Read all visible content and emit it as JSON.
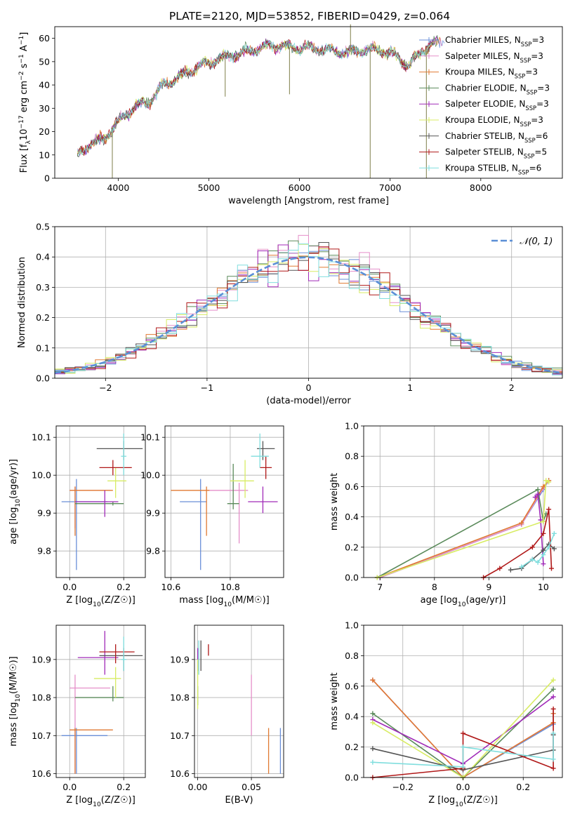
{
  "title": "PLATE=2120, MJD=53852, FIBERID=0429, z=0.064",
  "colors": {
    "chabrier_miles": "#6a8fd8",
    "salpeter_miles": "#e58fc9",
    "kroupa_miles": "#e07a32",
    "chabrier_elodie": "#5a8a5a",
    "salpeter_elodie": "#a02ab8",
    "kroupa_elodie": "#d8ec64",
    "chabrier_stelib": "#555555",
    "salpeter_stelib": "#b01818",
    "kroupa_stelib": "#80dede"
  },
  "chart_data": [
    {
      "id": "spectrum",
      "type": "line",
      "xlabel": "wavelength [Angstrom, rest frame]",
      "ylabel": "Flux [f_λ10^-17 erg cm^-2 s^-1 A^-1]",
      "xlim": [
        3300,
        8900
      ],
      "ylim": [
        0,
        65
      ],
      "xticks": [
        4000,
        5000,
        6000,
        7000,
        8000
      ],
      "yticks": [
        0,
        10,
        20,
        30,
        40,
        50,
        60
      ],
      "legend_position": "right",
      "grid": false,
      "continuum": {
        "x": [
          3550,
          3700,
          3850,
          3950,
          4050,
          4200,
          4350,
          4500,
          4700,
          4900,
          5100,
          5300,
          5500,
          5700,
          5900,
          6100,
          6300,
          6500,
          6700,
          6900,
          7100,
          7200,
          7350,
          7500,
          7600
        ],
        "y": [
          10,
          15,
          17,
          22,
          26,
          31,
          33,
          40,
          44,
          48,
          51,
          53,
          55,
          57,
          56,
          56,
          55,
          54,
          55,
          55,
          52,
          48,
          55,
          58,
          59
        ]
      },
      "features": [
        {
          "x": 3935,
          "y": 0
        },
        {
          "x": 5180,
          "y": 35
        },
        {
          "x": 5890,
          "y": 36
        },
        {
          "x": 6563,
          "y": 66
        },
        {
          "x": 6780,
          "y": 0
        },
        {
          "x": 7400,
          "y": 0
        }
      ],
      "series": [
        {
          "name": "Chabrier MILES",
          "nssp": "3",
          "color_key": "chabrier_miles"
        },
        {
          "name": "Salpeter MILES",
          "nssp": "3",
          "color_key": "salpeter_miles"
        },
        {
          "name": "Kroupa MILES",
          "nssp": "3",
          "color_key": "kroupa_miles"
        },
        {
          "name": "Chabrier ELODIE",
          "nssp": "3",
          "color_key": "chabrier_elodie"
        },
        {
          "name": "Salpeter ELODIE",
          "nssp": "3",
          "color_key": "salpeter_elodie"
        },
        {
          "name": "Kroupa ELODIE",
          "nssp": "3",
          "color_key": "kroupa_elodie"
        },
        {
          "name": "Chabrier STELIB",
          "nssp": "6",
          "color_key": "chabrier_stelib"
        },
        {
          "name": "Salpeter STELIB",
          "nssp": "5",
          "color_key": "salpeter_stelib"
        },
        {
          "name": "Kroupa STELIB",
          "nssp": "6",
          "color_key": "kroupa_stelib"
        }
      ]
    },
    {
      "id": "residuals",
      "type": "histogram",
      "xlabel": "(data-model)/error",
      "ylabel": "Normed distribution",
      "xlim": [
        -2.5,
        2.5
      ],
      "ylim": [
        0,
        0.5
      ],
      "xticks": [
        -2,
        -1,
        0,
        1,
        2
      ],
      "yticks": [
        0.0,
        0.1,
        0.2,
        0.3,
        0.4,
        0.5
      ],
      "grid": true,
      "bin_width": 0.1,
      "reference": {
        "name": "N(0,1)",
        "color": "#5b8fd6",
        "mean": 0,
        "sigma": 1
      }
    },
    {
      "id": "z_age",
      "type": "errorbar",
      "xlabel": "Z [log10(Z/Z☉)]",
      "ylabel": "age [log10(age/yr)]",
      "xlim": [
        -0.05,
        0.28
      ],
      "ylim": [
        9.73,
        10.13
      ],
      "xticks": [
        0.0,
        0.2
      ],
      "yticks": [
        9.8,
        9.9,
        10.0,
        10.1
      ],
      "grid": true,
      "points": [
        {
          "c": "chabrier_miles",
          "x": 0.025,
          "y": 9.93,
          "xl": -0.03,
          "xh": 0.14,
          "yl": 9.75,
          "yh": 9.99
        },
        {
          "c": "salpeter_miles",
          "x": 0.02,
          "y": 9.96,
          "xl": 0.0,
          "xh": 0.15,
          "yl": 9.86,
          "yh": 9.97
        },
        {
          "c": "kroupa_miles",
          "x": 0.02,
          "y": 9.96,
          "xl": 0.0,
          "xh": 0.16,
          "yl": 9.84,
          "yh": 9.97
        },
        {
          "c": "chabrier_elodie",
          "x": 0.16,
          "y": 9.925,
          "xl": 0.02,
          "xh": 0.2,
          "yl": 9.92,
          "yh": 9.93
        },
        {
          "c": "salpeter_elodie",
          "x": 0.13,
          "y": 9.93,
          "xl": 0.02,
          "xh": 0.18,
          "yl": 9.89,
          "yh": 9.96
        },
        {
          "c": "kroupa_elodie",
          "x": 0.17,
          "y": 9.985,
          "xl": 0.14,
          "xh": 0.21,
          "yl": 9.94,
          "yh": 10.02
        },
        {
          "c": "chabrier_stelib",
          "x": 0.2,
          "y": 10.07,
          "xl": 0.1,
          "xh": 0.27,
          "yl": 10.04,
          "yh": 10.09
        },
        {
          "c": "salpeter_stelib",
          "x": 0.16,
          "y": 10.02,
          "xl": 0.11,
          "xh": 0.23,
          "yl": 10.0,
          "yh": 10.04
        },
        {
          "c": "kroupa_stelib",
          "x": 0.2,
          "y": 10.05,
          "xl": 0.19,
          "xh": 0.21,
          "yl": 10.0,
          "yh": 10.11
        }
      ]
    },
    {
      "id": "mass_age",
      "type": "errorbar",
      "xlabel": "mass [log10(M/M☉)]",
      "ylabel": "",
      "xlim": [
        10.58,
        10.98
      ],
      "ylim": [
        9.73,
        10.13
      ],
      "xticks": [
        10.6,
        10.8
      ],
      "yticks": [
        9.8,
        9.9,
        10.0,
        10.1
      ],
      "grid": true,
      "points": [
        {
          "c": "chabrier_miles",
          "x": 10.7,
          "y": 9.93,
          "xl": 10.63,
          "xh": 10.72,
          "yl": 9.75,
          "yh": 9.99
        },
        {
          "c": "salpeter_miles",
          "x": 10.83,
          "y": 9.96,
          "xl": 10.72,
          "xh": 10.86,
          "yl": 9.82,
          "yh": 9.98
        },
        {
          "c": "kroupa_miles",
          "x": 10.72,
          "y": 9.96,
          "xl": 10.6,
          "xh": 10.73,
          "yl": 9.84,
          "yh": 9.97
        },
        {
          "c": "chabrier_elodie",
          "x": 10.81,
          "y": 9.925,
          "xl": 10.79,
          "xh": 10.83,
          "yl": 9.91,
          "yh": 10.03
        },
        {
          "c": "salpeter_elodie",
          "x": 10.91,
          "y": 9.93,
          "xl": 10.86,
          "xh": 10.96,
          "yl": 9.9,
          "yh": 9.97
        },
        {
          "c": "kroupa_elodie",
          "x": 10.85,
          "y": 9.985,
          "xl": 10.8,
          "xh": 10.88,
          "yl": 9.94,
          "yh": 10.04
        },
        {
          "c": "chabrier_stelib",
          "x": 10.91,
          "y": 10.07,
          "xl": 10.89,
          "xh": 10.95,
          "yl": 10.04,
          "yh": 10.09
        },
        {
          "c": "salpeter_stelib",
          "x": 10.92,
          "y": 10.02,
          "xl": 10.9,
          "xh": 10.94,
          "yl": 9.99,
          "yh": 10.05
        },
        {
          "c": "kroupa_stelib",
          "x": 10.9,
          "y": 10.05,
          "xl": 10.87,
          "xh": 10.93,
          "yl": 10.02,
          "yh": 10.11
        }
      ]
    },
    {
      "id": "age_weight",
      "type": "line",
      "xlabel": "age [log10(age/yr)]",
      "ylabel": "mass weight",
      "xlim": [
        6.7,
        10.35
      ],
      "ylim": [
        0,
        1
      ],
      "xticks": [
        7,
        8,
        9,
        10
      ],
      "yticks": [
        0.0,
        0.2,
        0.4,
        0.6,
        0.8,
        1.0
      ],
      "grid": true,
      "series": [
        {
          "c": "chabrier_miles",
          "x": [
            7.0,
            9.6,
            10.0,
            10.1
          ],
          "y": [
            0.0,
            0.35,
            0.58,
            0.64
          ]
        },
        {
          "c": "salpeter_miles",
          "x": [
            7.0,
            9.6,
            10.0,
            10.1
          ],
          "y": [
            0.0,
            0.35,
            0.59,
            0.64
          ]
        },
        {
          "c": "kroupa_miles",
          "x": [
            6.95,
            9.6,
            10.0,
            10.1
          ],
          "y": [
            0.0,
            0.36,
            0.6,
            0.64
          ]
        },
        {
          "c": "chabrier_elodie",
          "x": [
            6.95,
            9.9,
            10.0,
            10.05
          ],
          "y": [
            0.0,
            0.58,
            0.37,
            0.42
          ]
        },
        {
          "c": "salpeter_elodie",
          "x": [
            9.85,
            9.9,
            9.95,
            10.0
          ],
          "y": [
            0.53,
            0.55,
            0.38,
            0.09
          ]
        },
        {
          "c": "kroupa_elodie",
          "x": [
            6.95,
            10.0,
            10.05,
            10.1
          ],
          "y": [
            0.0,
            0.37,
            0.64,
            0.63
          ]
        },
        {
          "c": "chabrier_stelib",
          "x": [
            9.4,
            9.6,
            9.8,
            10.0,
            10.1,
            10.2
          ],
          "y": [
            0.05,
            0.06,
            0.12,
            0.18,
            0.22,
            0.19
          ]
        },
        {
          "c": "salpeter_stelib",
          "x": [
            8.9,
            9.2,
            9.8,
            10.0,
            10.1,
            10.15
          ],
          "y": [
            0.0,
            0.06,
            0.2,
            0.29,
            0.45,
            0.06
          ]
        },
        {
          "c": "kroupa_stelib",
          "x": [
            9.6,
            9.8,
            9.9,
            10.0,
            10.1,
            10.2
          ],
          "y": [
            0.07,
            0.12,
            0.1,
            0.15,
            0.2,
            0.29
          ]
        }
      ]
    },
    {
      "id": "z_mass",
      "type": "errorbar",
      "xlabel": "Z [log10(Z/Z☉)]",
      "ylabel": "mass [log10(M/M☉)]",
      "xlim": [
        -0.05,
        0.28
      ],
      "ylim": [
        10.59,
        10.99
      ],
      "xticks": [
        0.0,
        0.2
      ],
      "yticks": [
        10.6,
        10.7,
        10.8,
        10.9
      ],
      "grid": true,
      "points": [
        {
          "c": "chabrier_miles",
          "x": 0.025,
          "y": 10.7,
          "xl": -0.03,
          "xh": 0.14,
          "yl": 10.6,
          "yh": 10.72
        },
        {
          "c": "salpeter_miles",
          "x": 0.02,
          "y": 10.825,
          "xl": 0.0,
          "xh": 0.15,
          "yl": 10.6,
          "yh": 10.86
        },
        {
          "c": "kroupa_miles",
          "x": 0.02,
          "y": 10.715,
          "xl": 0.0,
          "xh": 0.16,
          "yl": 10.6,
          "yh": 10.72
        },
        {
          "c": "chabrier_elodie",
          "x": 0.16,
          "y": 10.8,
          "xl": 0.02,
          "xh": 0.2,
          "yl": 10.79,
          "yh": 10.83
        },
        {
          "c": "salpeter_elodie",
          "x": 0.13,
          "y": 10.905,
          "xl": 0.03,
          "xh": 0.18,
          "yl": 10.86,
          "yh": 10.975
        },
        {
          "c": "kroupa_elodie",
          "x": 0.17,
          "y": 10.85,
          "xl": 0.09,
          "xh": 0.19,
          "yl": 10.8,
          "yh": 10.88
        },
        {
          "c": "chabrier_stelib",
          "x": 0.2,
          "y": 10.91,
          "xl": 0.11,
          "xh": 0.27,
          "yl": 10.87,
          "yh": 10.93
        },
        {
          "c": "salpeter_stelib",
          "x": 0.17,
          "y": 10.92,
          "xl": 0.11,
          "xh": 0.24,
          "yl": 10.89,
          "yh": 10.94
        },
        {
          "c": "kroupa_stelib",
          "x": 0.2,
          "y": 10.9,
          "xl": 0.19,
          "xh": 0.21,
          "yl": 10.87,
          "yh": 10.96
        }
      ]
    },
    {
      "id": "ebv_mass",
      "type": "errorbar",
      "xlabel": "E(B-V)",
      "ylabel": "",
      "xlim": [
        -0.003,
        0.08
      ],
      "ylim": [
        10.59,
        10.99
      ],
      "xticks": [
        0.0,
        0.05
      ],
      "yticks": [
        10.6,
        10.7,
        10.8,
        10.9
      ],
      "grid": true,
      "points": [
        {
          "c": "chabrier_miles",
          "x": 0.077,
          "y": 10.7,
          "yl": 10.6,
          "yh": 10.72
        },
        {
          "c": "salpeter_miles",
          "x": 0.05,
          "y": 10.825,
          "yl": 10.7,
          "yh": 10.86
        },
        {
          "c": "kroupa_miles",
          "x": 0.066,
          "y": 10.715,
          "yl": 10.6,
          "yh": 10.72
        },
        {
          "c": "chabrier_elodie",
          "x": 0.0,
          "y": 10.8,
          "yl": 10.78,
          "yh": 10.83
        },
        {
          "c": "salpeter_elodie",
          "x": 0.0,
          "y": 10.905,
          "yl": 10.87,
          "yh": 10.93
        },
        {
          "c": "kroupa_elodie",
          "x": 0.0,
          "y": 10.85,
          "yl": 10.77,
          "yh": 10.9
        },
        {
          "c": "chabrier_stelib",
          "x": 0.003,
          "y": 10.91,
          "yl": 10.87,
          "yh": 10.95
        },
        {
          "c": "salpeter_stelib",
          "x": 0.01,
          "y": 10.92,
          "yl": 10.91,
          "yh": 10.94
        },
        {
          "c": "kroupa_stelib",
          "x": 0.001,
          "y": 10.9,
          "yl": 10.86,
          "yh": 10.95
        }
      ]
    },
    {
      "id": "z_weight",
      "type": "line",
      "xlabel": "Z [log10(Z/Z☉)]",
      "ylabel": "mass weight",
      "xlim": [
        -0.33,
        0.33
      ],
      "ylim": [
        0,
        1
      ],
      "xticks": [
        -0.2,
        0.0,
        0.2
      ],
      "yticks": [
        0.0,
        0.2,
        0.4,
        0.6,
        0.8,
        1.0
      ],
      "grid": true,
      "series": [
        {
          "c": "chabrier_miles",
          "x": [
            -0.3,
            0.0,
            0.3,
            0.3
          ],
          "y": [
            0.64,
            0.0,
            0.35,
            0.42
          ]
        },
        {
          "c": "salpeter_miles",
          "x": [
            -0.3,
            0.0,
            0.3
          ],
          "y": [
            0.64,
            0.0,
            0.36
          ]
        },
        {
          "c": "kroupa_miles",
          "x": [
            -0.3,
            0.0,
            0.3,
            0.3
          ],
          "y": [
            0.64,
            0.0,
            0.36,
            0.42
          ]
        },
        {
          "c": "chabrier_elodie",
          "x": [
            -0.3,
            0.0,
            0.3
          ],
          "y": [
            0.42,
            0.0,
            0.58
          ]
        },
        {
          "c": "salpeter_elodie",
          "x": [
            -0.3,
            0.0,
            0.3
          ],
          "y": [
            0.38,
            0.09,
            0.53
          ]
        },
        {
          "c": "kroupa_elodie",
          "x": [
            -0.3,
            0.0,
            0.3
          ],
          "y": [
            0.36,
            0.0,
            0.64
          ]
        },
        {
          "c": "chabrier_stelib",
          "x": [
            -0.3,
            0.0,
            0.3,
            0.3
          ],
          "y": [
            0.19,
            0.05,
            0.18,
            0.28
          ]
        },
        {
          "c": "salpeter_stelib",
          "x": [
            -0.3,
            0.0,
            0.0,
            0.3,
            0.3
          ],
          "y": [
            0.0,
            0.06,
            0.29,
            0.06,
            0.45
          ]
        },
        {
          "c": "kroupa_stelib",
          "x": [
            -0.3,
            0.0,
            0.0,
            0.3,
            0.3
          ],
          "y": [
            0.1,
            0.07,
            0.2,
            0.12,
            0.29
          ]
        }
      ]
    }
  ]
}
